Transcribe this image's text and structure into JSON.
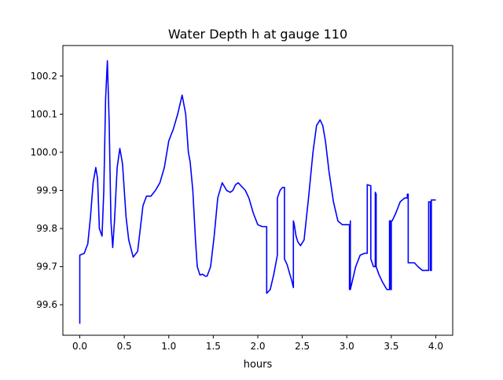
{
  "chart_data": {
    "type": "line",
    "title": "Water Depth h at gauge 110",
    "xlabel": "hours",
    "ylabel": "",
    "xlim": [
      -0.19,
      4.19
    ],
    "ylim": [
      99.52,
      100.28
    ],
    "xticks": [
      0.0,
      0.5,
      1.0,
      1.5,
      2.0,
      2.5,
      3.0,
      3.5,
      4.0
    ],
    "xtick_labels": [
      "0.0",
      "0.5",
      "1.0",
      "1.5",
      "2.0",
      "2.5",
      "3.0",
      "3.5",
      "4.0"
    ],
    "yticks": [
      99.6,
      99.7,
      99.8,
      99.9,
      100.0,
      100.1,
      100.2
    ],
    "ytick_labels": [
      "99.6",
      "99.7",
      "99.8",
      "99.9",
      "100.0",
      "100.1",
      "100.2"
    ],
    "grid": false,
    "series": [
      {
        "color": "#0000ff",
        "x": [
          0.0,
          0.0,
          0.05,
          0.09,
          0.12,
          0.15,
          0.18,
          0.2,
          0.22,
          0.25,
          0.27,
          0.29,
          0.31,
          0.33,
          0.35,
          0.37,
          0.39,
          0.42,
          0.45,
          0.48,
          0.5,
          0.52,
          0.55,
          0.6,
          0.65,
          0.68,
          0.71,
          0.75,
          0.8,
          0.85,
          0.9,
          0.95,
          1.0,
          1.05,
          1.1,
          1.15,
          1.19,
          1.22,
          1.24,
          1.27,
          1.3,
          1.32,
          1.35,
          1.38,
          1.41,
          1.43,
          1.47,
          1.51,
          1.55,
          1.6,
          1.65,
          1.69,
          1.72,
          1.75,
          1.78,
          1.82,
          1.86,
          1.9,
          1.95,
          2.0,
          2.05,
          2.09,
          2.1,
          2.1,
          2.14,
          2.18,
          2.22,
          2.22,
          2.25,
          2.28,
          2.3,
          2.3,
          2.33,
          2.36,
          2.38,
          2.4,
          2.4,
          2.41,
          2.43,
          2.45,
          2.48,
          2.52,
          2.57,
          2.62,
          2.66,
          2.7,
          2.73,
          2.76,
          2.8,
          2.85,
          2.9,
          2.95,
          3.0,
          3.03,
          3.03,
          3.035,
          3.04,
          3.04,
          3.045,
          3.06,
          3.1,
          3.15,
          3.2,
          3.22,
          3.23,
          3.23,
          3.27,
          3.27,
          3.3,
          3.32,
          3.32,
          3.33,
          3.33,
          3.36,
          3.4,
          3.45,
          3.47,
          3.48,
          3.48,
          3.49,
          3.49,
          3.5,
          3.5,
          3.51,
          3.55,
          3.6,
          3.65,
          3.68,
          3.68,
          3.69,
          3.69,
          3.72,
          3.76,
          3.8,
          3.85,
          3.9,
          3.92,
          3.92,
          3.94,
          3.94,
          3.95,
          3.95,
          3.97,
          3.99,
          4.0
        ],
        "y": [
          99.55,
          99.73,
          99.735,
          99.76,
          99.83,
          99.92,
          99.96,
          99.93,
          99.8,
          99.78,
          99.9,
          100.14,
          100.24,
          100.08,
          99.82,
          99.75,
          99.82,
          99.96,
          100.01,
          99.97,
          99.9,
          99.83,
          99.77,
          99.725,
          99.74,
          99.8,
          99.86,
          99.885,
          99.885,
          99.9,
          99.92,
          99.96,
          100.03,
          100.06,
          100.1,
          100.15,
          100.1,
          100.0,
          99.975,
          99.9,
          99.77,
          99.7,
          99.678,
          99.68,
          99.675,
          99.675,
          99.7,
          99.78,
          99.88,
          99.92,
          99.9,
          99.895,
          99.9,
          99.915,
          99.92,
          99.91,
          99.9,
          99.88,
          99.84,
          99.81,
          99.805,
          99.805,
          99.805,
          99.63,
          99.64,
          99.68,
          99.73,
          99.88,
          99.9,
          99.908,
          99.908,
          99.72,
          99.705,
          99.68,
          99.665,
          99.645,
          99.82,
          99.81,
          99.78,
          99.765,
          99.755,
          99.77,
          99.88,
          100.0,
          100.07,
          100.085,
          100.07,
          100.03,
          99.95,
          99.87,
          99.82,
          99.81,
          99.81,
          99.81,
          99.64,
          99.65,
          99.82,
          99.64,
          99.645,
          99.66,
          99.7,
          99.73,
          99.735,
          99.735,
          99.735,
          99.915,
          99.912,
          99.72,
          99.7,
          99.7,
          99.895,
          99.89,
          99.7,
          99.68,
          99.66,
          99.64,
          99.64,
          99.64,
          99.82,
          99.82,
          99.64,
          99.64,
          99.82,
          99.82,
          99.84,
          99.87,
          99.88,
          99.88,
          99.89,
          99.89,
          99.71,
          99.71,
          99.71,
          99.7,
          99.69,
          99.69,
          99.69,
          99.87,
          99.87,
          99.69,
          99.69,
          99.875,
          99.875,
          99.875,
          99.875
        ]
      }
    ]
  }
}
